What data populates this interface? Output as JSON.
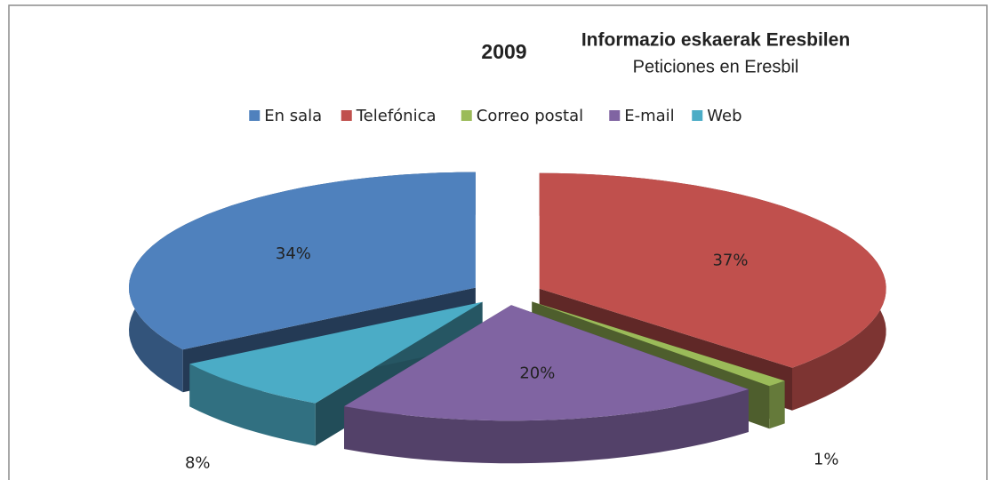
{
  "chart_data": {
    "type": "pie",
    "title": "Informazio eskaerak Eresbilen",
    "subtitle": "Peticiones en Eresbil",
    "year_label": "2009",
    "categories": [
      "En sala",
      "Telefónica",
      "Correo postal",
      "E-mail",
      "Web"
    ],
    "values": [
      34,
      37,
      1,
      20,
      8
    ],
    "value_labels": [
      "34%",
      "37%",
      "1%",
      "20%",
      "8%"
    ],
    "colors": [
      "#4f81bd",
      "#c0504d",
      "#9bbb59",
      "#8064a2",
      "#4bacc6"
    ],
    "legend": "top"
  }
}
